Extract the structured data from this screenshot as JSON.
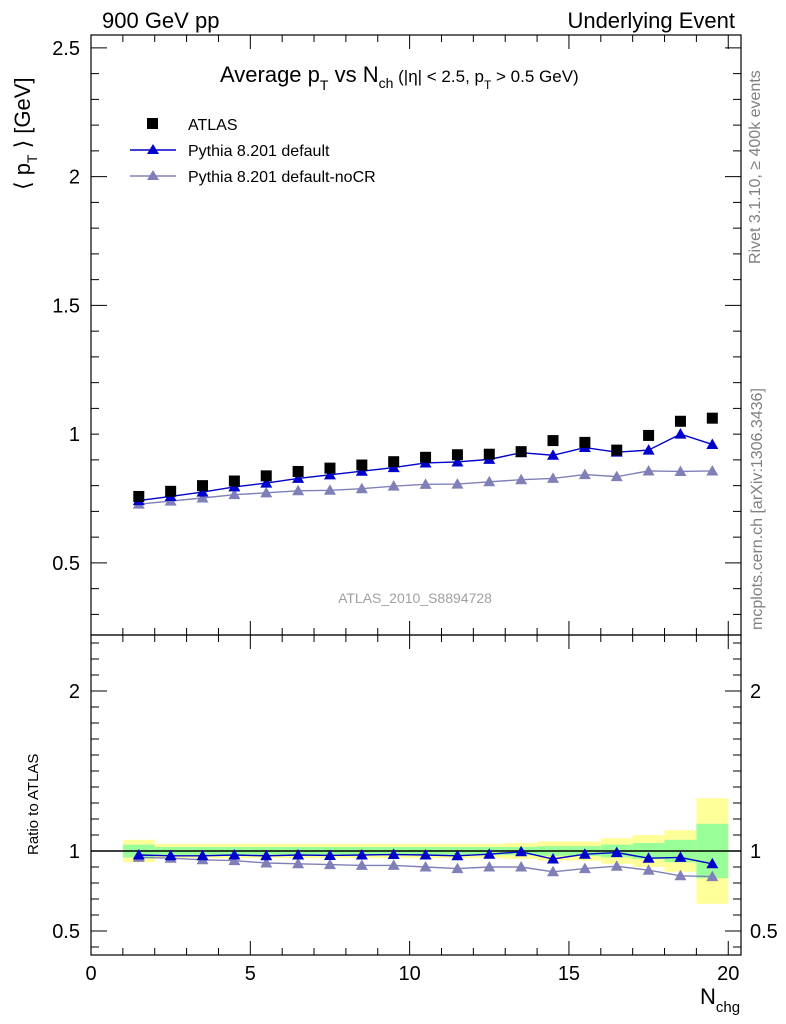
{
  "header": {
    "left": "900 GeV pp",
    "right": "Underlying Event"
  },
  "side_labels": {
    "rivet": "Rivet 3.1.10, ≥ 400k events",
    "mcplots": "mcplots.cern.ch [arXiv:1306.3436]"
  },
  "watermark": "ATLAS_2010_S8894728",
  "colors": {
    "data": "#000000",
    "mc1": "#0000cc",
    "mc2": "#8080b8",
    "band_stat": "#99ff99",
    "band_tot": "#ffff99"
  },
  "chart_data": [
    {
      "type": "scatter",
      "title": {
        "pre": "Average p",
        "pre_sub": "T",
        "mid": " vs N",
        "mid_sub": "ch",
        "cut_pre": " (|η| < 2.5, p",
        "cut_sub": "T",
        "cut_post": " > 0.5 GeV)"
      },
      "ylabel": {
        "pre": "⟨ p",
        "sub": "T",
        "post": " ⟩ [GeV]"
      },
      "ylim": [
        0.22,
        2.55
      ],
      "yticks": [
        0.5,
        1,
        1.5,
        2,
        2.5
      ],
      "ytick_labels": [
        "0.5",
        "1",
        "1.5",
        "2",
        "2.5"
      ],
      "x": [
        1.5,
        2.5,
        3.5,
        4.5,
        5.5,
        6.5,
        7.5,
        8.5,
        9.5,
        10.5,
        11.5,
        12.5,
        13.5,
        14.5,
        15.5,
        16.5,
        17.5,
        18.5,
        19.5
      ],
      "series": [
        {
          "name": "ATLAS",
          "marker": "square",
          "values": [
            0.758,
            0.778,
            0.8,
            0.818,
            0.838,
            0.855,
            0.868,
            0.88,
            0.893,
            0.91,
            0.92,
            0.922,
            0.932,
            0.975,
            0.968,
            0.938,
            0.995,
            1.05,
            1.062
          ]
        },
        {
          "name": "Pythia 8.201 default",
          "marker": "triangle",
          "values": [
            0.742,
            0.758,
            0.775,
            0.795,
            0.81,
            0.828,
            0.842,
            0.856,
            0.87,
            0.888,
            0.892,
            0.902,
            0.928,
            0.918,
            0.948,
            0.93,
            0.938,
            1.0,
            0.96
          ]
        },
        {
          "name": "Pythia 8.201 default-noCR",
          "marker": "triangle",
          "values": [
            0.728,
            0.74,
            0.752,
            0.765,
            0.772,
            0.78,
            0.782,
            0.788,
            0.798,
            0.805,
            0.806,
            0.815,
            0.823,
            0.828,
            0.843,
            0.835,
            0.857,
            0.855,
            0.857
          ]
        }
      ]
    },
    {
      "type": "line",
      "ylabel": "Ratio to ATLAS",
      "xlabel": {
        "main": "N",
        "sub": "chg"
      },
      "xlim": [
        0,
        20.4
      ],
      "ylim": [
        0.35,
        2.35
      ],
      "xticks": [
        0,
        5,
        10,
        15,
        20
      ],
      "xtick_labels": [
        "0",
        "5",
        "10",
        "15",
        "20"
      ],
      "yticks": [
        0.5,
        1,
        2
      ],
      "ytick_labels": [
        "0.5",
        "1",
        "2"
      ],
      "x": [
        1.5,
        2.5,
        3.5,
        4.5,
        5.5,
        6.5,
        7.5,
        8.5,
        9.5,
        10.5,
        11.5,
        12.5,
        13.5,
        14.5,
        15.5,
        16.5,
        17.5,
        18.5,
        19.5
      ],
      "bands": {
        "stat_half_width": [
          0.04,
          0.025,
          0.025,
          0.025,
          0.025,
          0.025,
          0.025,
          0.025,
          0.025,
          0.025,
          0.025,
          0.025,
          0.025,
          0.03,
          0.03,
          0.04,
          0.05,
          0.07,
          0.17
        ],
        "total_half_width": [
          0.07,
          0.045,
          0.045,
          0.045,
          0.045,
          0.045,
          0.045,
          0.045,
          0.045,
          0.045,
          0.045,
          0.045,
          0.05,
          0.06,
          0.06,
          0.08,
          0.1,
          0.13,
          0.33
        ]
      },
      "series": [
        {
          "name": "Pythia 8.201 default",
          "values": [
            0.975,
            0.97,
            0.97,
            0.975,
            0.97,
            0.975,
            0.972,
            0.975,
            0.978,
            0.975,
            0.97,
            0.98,
            0.995,
            0.95,
            0.98,
            0.99,
            0.955,
            0.96,
            0.92
          ]
        },
        {
          "name": "Pythia 8.201 default-noCR",
          "values": [
            0.96,
            0.955,
            0.945,
            0.94,
            0.925,
            0.92,
            0.915,
            0.91,
            0.91,
            0.9,
            0.89,
            0.9,
            0.9,
            0.87,
            0.89,
            0.905,
            0.88,
            0.845,
            0.84
          ]
        }
      ]
    }
  ]
}
